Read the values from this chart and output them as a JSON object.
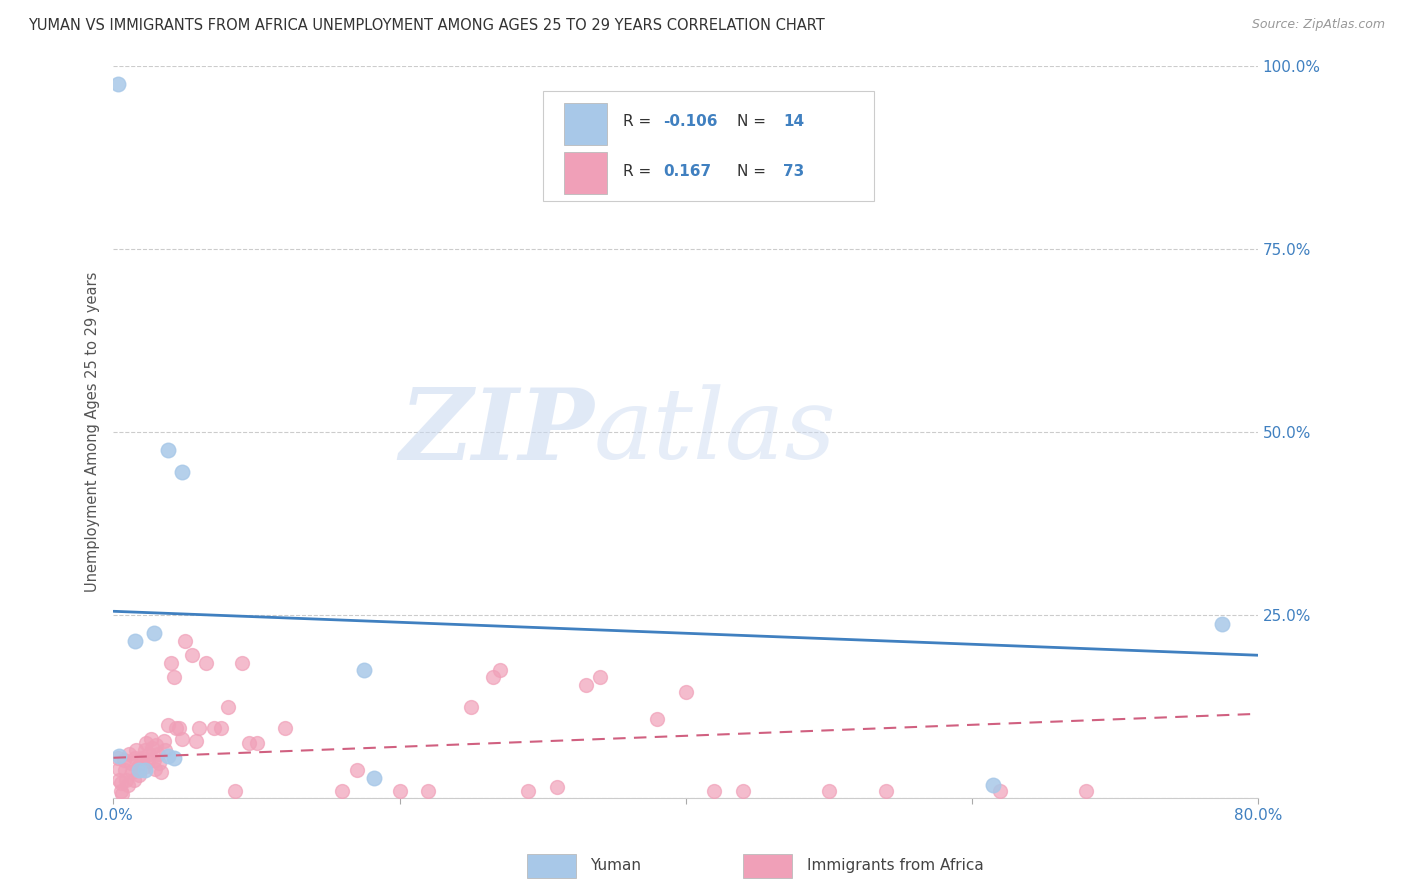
{
  "title": "YUMAN VS IMMIGRANTS FROM AFRICA UNEMPLOYMENT AMONG AGES 25 TO 29 YEARS CORRELATION CHART",
  "source": "Source: ZipAtlas.com",
  "ylabel": "Unemployment Among Ages 25 to 29 years",
  "xlim": [
    0.0,
    0.8
  ],
  "ylim": [
    0.0,
    1.0
  ],
  "x_ticks": [
    0.0,
    0.2,
    0.4,
    0.6,
    0.8
  ],
  "y_ticks": [
    0.0,
    0.25,
    0.5,
    0.75,
    1.0
  ],
  "yuman_color": "#a8c8e8",
  "africa_color": "#f0a0b8",
  "trendline_yuman_color": "#4080c0",
  "trendline_africa_color": "#d06080",
  "watermark_ZIP": "ZIP",
  "watermark_atlas": "atlas",
  "legend_R_yuman": "-0.106",
  "legend_N_yuman": "14",
  "legend_R_africa": "0.167",
  "legend_N_africa": "73",
  "yuman_trend_x": [
    0.0,
    0.8
  ],
  "yuman_trend_y": [
    0.255,
    0.195
  ],
  "africa_trend_x": [
    0.0,
    0.8
  ],
  "africa_trend_y": [
    0.055,
    0.115
  ],
  "yuman_points_x": [
    0.003,
    0.015,
    0.018,
    0.022,
    0.028,
    0.038,
    0.048,
    0.175,
    0.182,
    0.615,
    0.775,
    0.004,
    0.038,
    0.042
  ],
  "yuman_points_y": [
    0.975,
    0.215,
    0.038,
    0.038,
    0.225,
    0.475,
    0.445,
    0.175,
    0.028,
    0.018,
    0.238,
    0.058,
    0.058,
    0.055
  ],
  "africa_points_x": [
    0.003,
    0.004,
    0.004,
    0.005,
    0.005,
    0.006,
    0.007,
    0.008,
    0.009,
    0.01,
    0.011,
    0.012,
    0.013,
    0.014,
    0.015,
    0.016,
    0.017,
    0.018,
    0.019,
    0.02,
    0.021,
    0.022,
    0.023,
    0.024,
    0.025,
    0.026,
    0.027,
    0.028,
    0.029,
    0.03,
    0.031,
    0.032,
    0.033,
    0.035,
    0.036,
    0.038,
    0.04,
    0.042,
    0.044,
    0.046,
    0.048,
    0.05,
    0.055,
    0.058,
    0.06,
    0.065,
    0.07,
    0.075,
    0.08,
    0.085,
    0.09,
    0.095,
    0.1,
    0.12,
    0.16,
    0.17,
    0.2,
    0.22,
    0.25,
    0.265,
    0.27,
    0.29,
    0.31,
    0.33,
    0.34,
    0.38,
    0.4,
    0.42,
    0.44,
    0.5,
    0.54,
    0.62,
    0.68
  ],
  "africa_points_y": [
    0.055,
    0.04,
    0.025,
    0.02,
    0.01,
    0.005,
    0.052,
    0.038,
    0.025,
    0.018,
    0.06,
    0.048,
    0.035,
    0.025,
    0.055,
    0.065,
    0.042,
    0.032,
    0.048,
    0.055,
    0.042,
    0.065,
    0.075,
    0.05,
    0.06,
    0.08,
    0.068,
    0.052,
    0.04,
    0.072,
    0.06,
    0.048,
    0.035,
    0.078,
    0.065,
    0.1,
    0.185,
    0.165,
    0.095,
    0.095,
    0.08,
    0.215,
    0.195,
    0.078,
    0.095,
    0.185,
    0.095,
    0.095,
    0.125,
    0.01,
    0.185,
    0.075,
    0.075,
    0.095,
    0.01,
    0.038,
    0.01,
    0.01,
    0.125,
    0.165,
    0.175,
    0.01,
    0.015,
    0.155,
    0.165,
    0.108,
    0.145,
    0.01,
    0.01,
    0.01,
    0.01,
    0.01,
    0.01
  ]
}
